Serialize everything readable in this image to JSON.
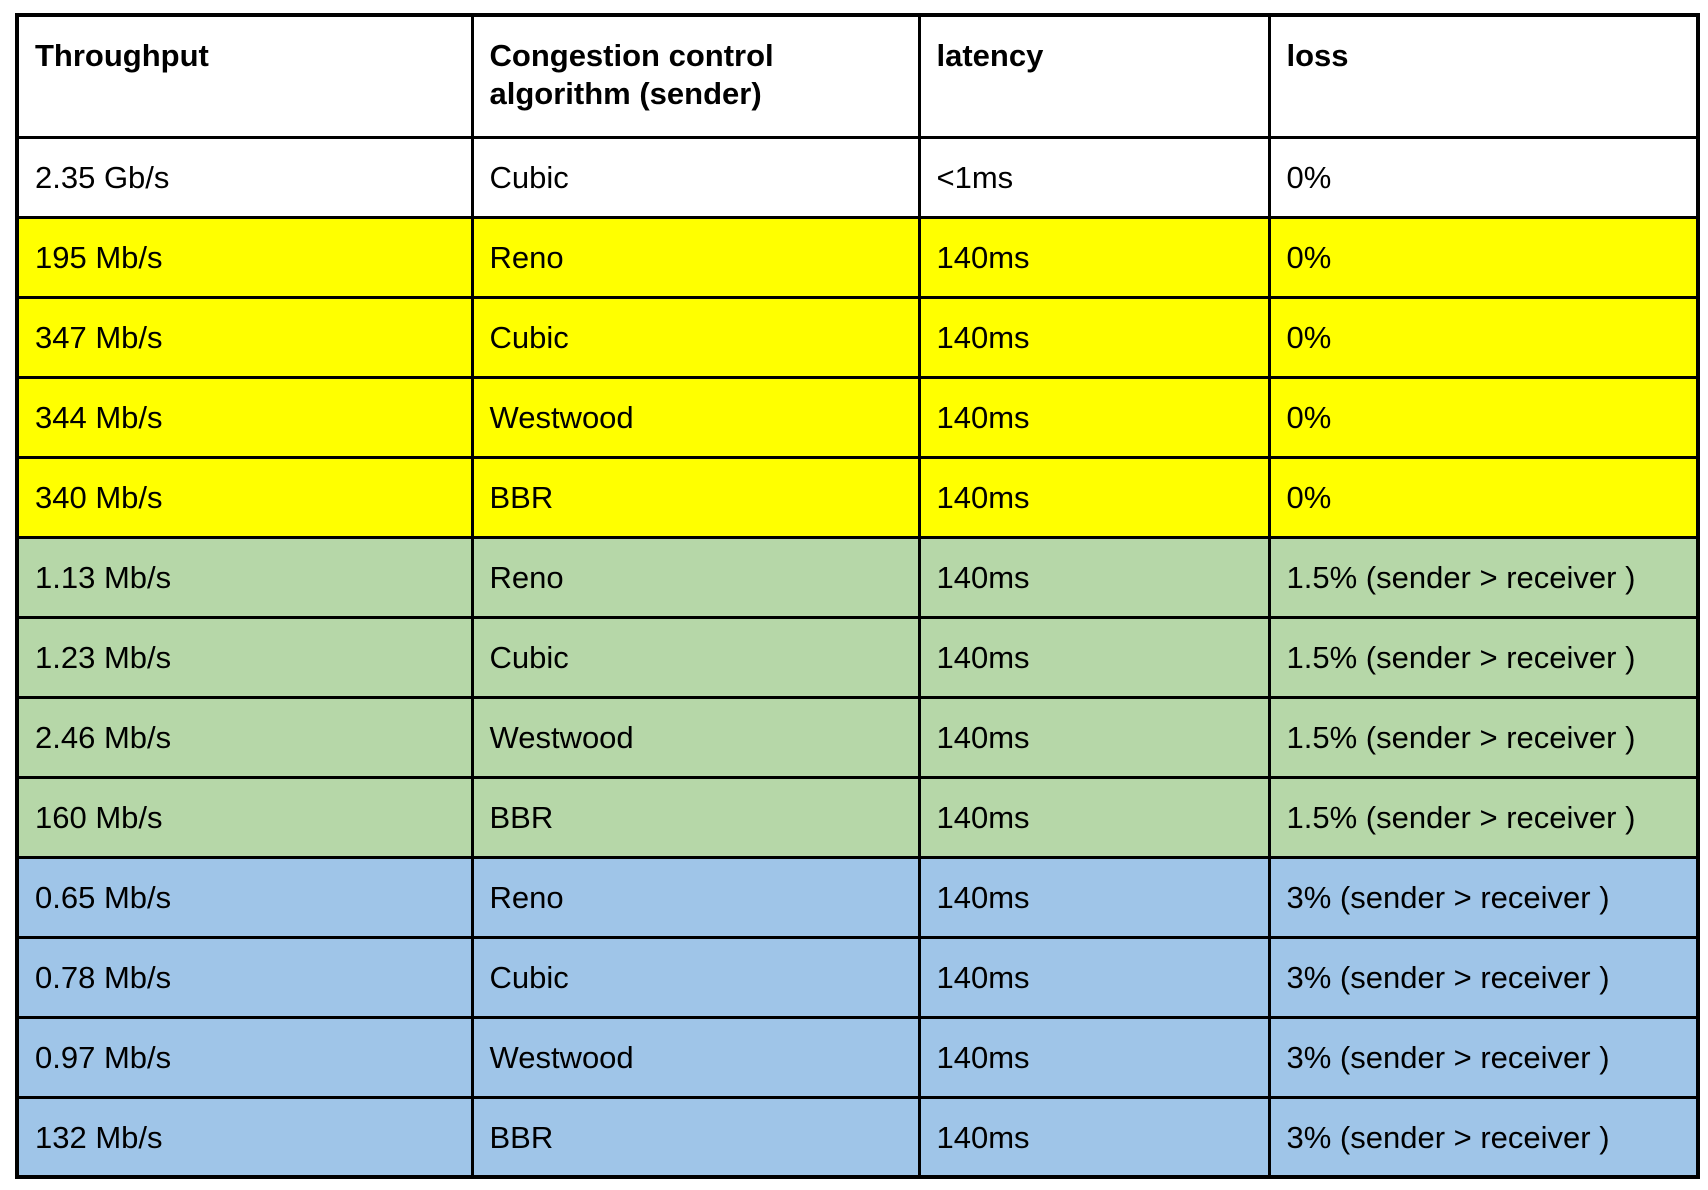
{
  "table": {
    "columns": [
      "Throughput",
      "Congestion control algorithm (sender)",
      "latency",
      "loss"
    ],
    "row_colors": {
      "white": "#ffffff",
      "yellow": "#ffff00",
      "green": "#b6d7a8",
      "blue": "#9fc5e8"
    },
    "text_color": "#000000",
    "border_color": "#000000",
    "rows": [
      {
        "color": "white",
        "cells": [
          "2.35 Gb/s",
          "Cubic",
          "<1ms",
          "0%"
        ]
      },
      {
        "color": "yellow",
        "cells": [
          "195 Mb/s",
          "Reno",
          "140ms",
          "0%"
        ]
      },
      {
        "color": "yellow",
        "cells": [
          "347 Mb/s",
          "Cubic",
          "140ms",
          "0%"
        ]
      },
      {
        "color": "yellow",
        "cells": [
          "344 Mb/s",
          "Westwood",
          "140ms",
          "0%"
        ]
      },
      {
        "color": "yellow",
        "cells": [
          "340 Mb/s",
          "BBR",
          "140ms",
          "0%"
        ]
      },
      {
        "color": "green",
        "cells": [
          "1.13 Mb/s",
          "Reno",
          "140ms",
          "1.5% (sender > receiver )"
        ]
      },
      {
        "color": "green",
        "cells": [
          "1.23 Mb/s",
          "Cubic",
          "140ms",
          "1.5% (sender > receiver )"
        ]
      },
      {
        "color": "green",
        "cells": [
          "2.46 Mb/s",
          "Westwood",
          "140ms",
          "1.5% (sender > receiver )"
        ]
      },
      {
        "color": "green",
        "cells": [
          "160 Mb/s",
          "BBR",
          "140ms",
          "1.5% (sender > receiver )"
        ]
      },
      {
        "color": "blue",
        "cells": [
          "0.65 Mb/s",
          "Reno",
          "140ms",
          "3% (sender > receiver )"
        ]
      },
      {
        "color": "blue",
        "cells": [
          "0.78 Mb/s",
          "Cubic",
          "140ms",
          "3% (sender > receiver )"
        ]
      },
      {
        "color": "blue",
        "cells": [
          "0.97 Mb/s",
          "Westwood",
          "140ms",
          "3% (sender > receiver )"
        ]
      },
      {
        "color": "blue",
        "cells": [
          "132 Mb/s",
          "BBR",
          "140ms",
          "3% (sender > receiver )"
        ]
      }
    ]
  }
}
